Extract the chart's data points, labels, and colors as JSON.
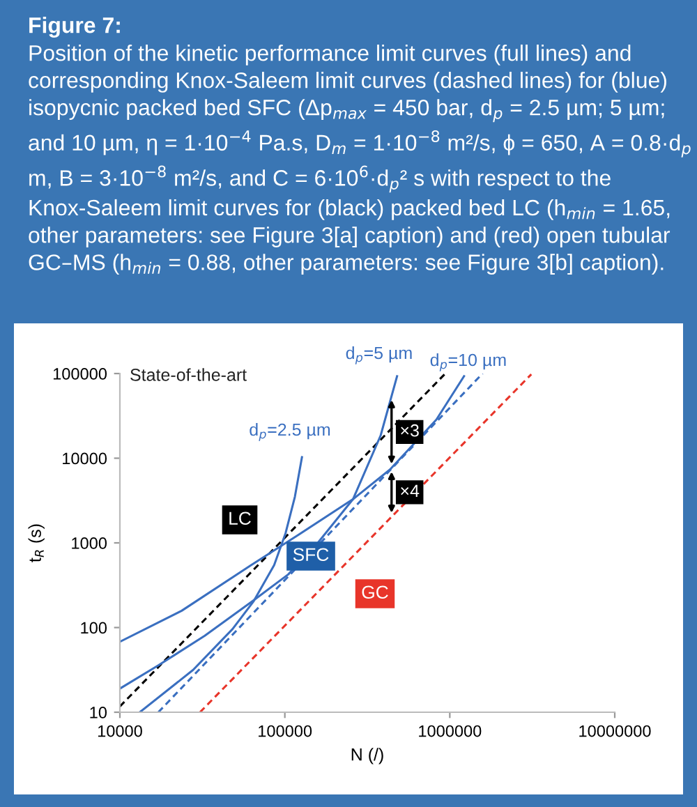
{
  "chart_data": {
    "type": "line",
    "title": "Figure 7:",
    "subtitle": "Position of the kinetic performance limit curves (full lines) and corresponding Knox-Saleem limit curves (dashed lines) for (blue) isopycnic packed bed SFC (Δp$_{max}$ = 450 bar, d$_{p}$ = 2.5 µm; 5 µm; and 10 µm, η = 1·10$^{−4}$ Pa.s, D$_{m}$ = 1·10$^{−8}$ m²/s, ϕ = 650, A = 0.8·d$_{p}$ m, B = 3·10$^{−8}$ m²/s, and C = 6·10$^{6}$·d$_{p}$² s with respect to the Knox-Saleem limit curves for (black) packed bed LC (h$_{min}$ = 1.65, other parameters: see Figure 3[a] caption) and (red) open tubular GC–MS (h$_{min}$ = 0.88, other parameters: see Figure 3[b] caption).",
    "xlabel": "N (/)",
    "ylabel": "t$_{R}$ (s)",
    "log": "xy",
    "grid": false,
    "xlim": [
      10000,
      10000000
    ],
    "ylim": [
      10,
      100000
    ],
    "xticks": [
      10000,
      100000,
      1000000,
      10000000
    ],
    "yticks": [
      10,
      100,
      1000,
      10000,
      100000
    ],
    "series": [
      {
        "name": "LC",
        "color": "#000000",
        "line_style": "dashed",
        "x": [
          10000,
          930000
        ],
        "values": [
          11.7,
          98000
        ]
      },
      {
        "name": "d$_{p}$=2.5 µm",
        "color": "#3a6fc0",
        "line_style": "solid",
        "x": [
          13200,
          27800,
          48200,
          64400,
          86100,
          101000,
          115000,
          127000
        ],
        "values": [
          10,
          31.6,
          96,
          202,
          546,
          1300,
          3490,
          10300
        ]
      },
      {
        "name": "d$_{p}$=5 µm",
        "color": "#3a6fc0",
        "line_style": "solid",
        "x": [
          10000,
          17100,
          32700,
          64400,
          105000,
          159000,
          259000,
          381000,
          479000
        ],
        "values": [
          19,
          35.8,
          80,
          208,
          425,
          1010,
          3280,
          18600,
          93000
        ]
      },
      {
        "name": "d$_{p}$=10 µm",
        "color": "#3a6fc0",
        "line_style": "solid",
        "x": [
          10000,
          23700,
          62400,
          119000,
          259000,
          434000,
          830000,
          1220000
        ],
        "values": [
          68,
          158,
          546,
          1220,
          3280,
          7350,
          28600,
          93000
        ]
      },
      {
        "name": "SFC",
        "color": "#3a6fc0",
        "line_style": "dashed",
        "x": [
          17100,
          1580000
        ],
        "values": [
          10,
          100000
        ]
      },
      {
        "name": "GC",
        "color": "#e8352a",
        "line_style": "dashed",
        "x": [
          30600,
          3120000
        ],
        "values": [
          10,
          98000
        ]
      }
    ],
    "annotations": [
      "State-of-the-art",
      "×3",
      "×4"
    ]
  }
}
